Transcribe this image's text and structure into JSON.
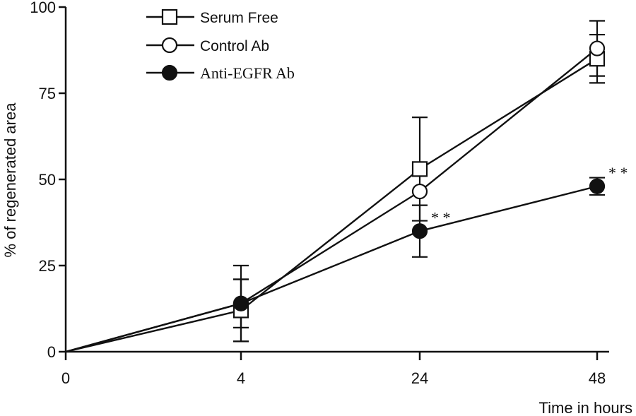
{
  "chart_data": {
    "type": "line",
    "title": "",
    "xlabel": "Time in hours",
    "ylabel": "% of regenerated area",
    "x": [
      "0",
      "4",
      "24",
      "48"
    ],
    "ylim": [
      0,
      100
    ],
    "yticks": [
      "0",
      "25",
      "50",
      "75",
      "100"
    ],
    "grid": false,
    "legend_position": "top-left",
    "series": [
      {
        "name": "Serum Free",
        "marker": "open-square",
        "values": [
          0,
          12,
          53,
          85
        ],
        "error": [
          0,
          9,
          15,
          7
        ]
      },
      {
        "name": "Control Ab",
        "marker": "open-circle",
        "values": [
          0,
          14,
          46.5,
          88
        ],
        "error": [
          0,
          11,
          0,
          8
        ]
      },
      {
        "name": "Anti-EGFR Ab",
        "marker": "filled-circle",
        "values": [
          0,
          14,
          35,
          48
        ],
        "error": [
          0,
          7,
          7.5,
          2.5
        ]
      }
    ],
    "annotations": [
      {
        "text": "* *",
        "x": "24",
        "y": 39
      },
      {
        "text": "* *",
        "x": "48",
        "y": 52
      }
    ],
    "colors": {
      "line": "#111111",
      "marker_fill": "#ffffff",
      "marker_filled": "#111111"
    }
  }
}
